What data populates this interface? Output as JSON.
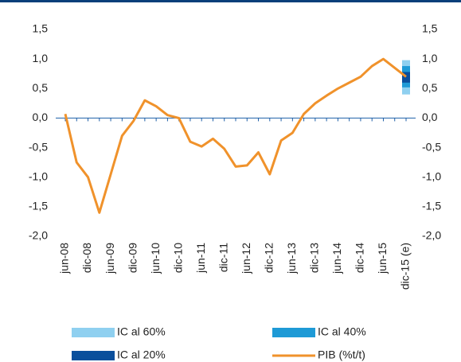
{
  "chart_data": {
    "type": "line",
    "categories": [
      "jun-08",
      null,
      "dic-08",
      null,
      "jun-09",
      null,
      "dic-09",
      null,
      "jun-10",
      null,
      "dic-10",
      null,
      "jun-11",
      null,
      "dic-11",
      null,
      "jun-12",
      null,
      "dic-12",
      null,
      "jun-13",
      null,
      "dic-13",
      null,
      "jun-14",
      null,
      "dic-14",
      null,
      "jun-15",
      null,
      "dic-15 (e)"
    ],
    "series": [
      {
        "name": "PIB (%t/t)",
        "color": "#f0922b",
        "values": [
          0.07,
          -0.75,
          -1.0,
          -1.6,
          -0.95,
          -0.3,
          -0.05,
          0.3,
          0.2,
          0.05,
          0.0,
          -0.4,
          -0.48,
          -0.35,
          -0.52,
          -0.82,
          -0.8,
          -0.58,
          -0.95,
          -0.38,
          -0.25,
          0.07,
          0.25,
          0.38,
          0.5,
          0.6,
          0.7,
          0.88,
          1.0,
          0.85,
          0.7
        ]
      }
    ],
    "bands": [
      {
        "name": "IC al 60%",
        "color": "#8fd0f0",
        "low": 0.4,
        "high": 0.98
      },
      {
        "name": "IC al 40%",
        "color": "#1e9ad6",
        "low": 0.52,
        "high": 0.88
      },
      {
        "name": "IC al 20%",
        "color": "#0a4f9c",
        "low": 0.6,
        "high": 0.78
      }
    ],
    "ylim": [
      -2.0,
      1.5
    ],
    "yticks": [
      {
        "value": -2.0,
        "label": "-2,0"
      },
      {
        "value": -1.5,
        "label": "-1,5"
      },
      {
        "value": -1.0,
        "label": "-1,0"
      },
      {
        "value": -0.5,
        "label": "-0,5"
      },
      {
        "value": 0.0,
        "label": "0,0"
      },
      {
        "value": 0.5,
        "label": "0,5"
      },
      {
        "value": 1.0,
        "label": "1,0"
      },
      {
        "value": 1.5,
        "label": "1,5"
      }
    ],
    "y2lim": [
      -2.0,
      1.5
    ],
    "y2ticks": [
      {
        "value": -2.0,
        "label": "-2,0"
      },
      {
        "value": -1.5,
        "label": "-1,5"
      },
      {
        "value": -1.0,
        "label": "-1,0"
      },
      {
        "value": -0.5,
        "label": "-0,5"
      },
      {
        "value": 0.0,
        "label": "0,0"
      },
      {
        "value": 0.5,
        "label": "0,5"
      },
      {
        "value": 1.0,
        "label": "1,0"
      },
      {
        "value": 1.5,
        "label": "1,5"
      }
    ],
    "grid": false
  }
}
